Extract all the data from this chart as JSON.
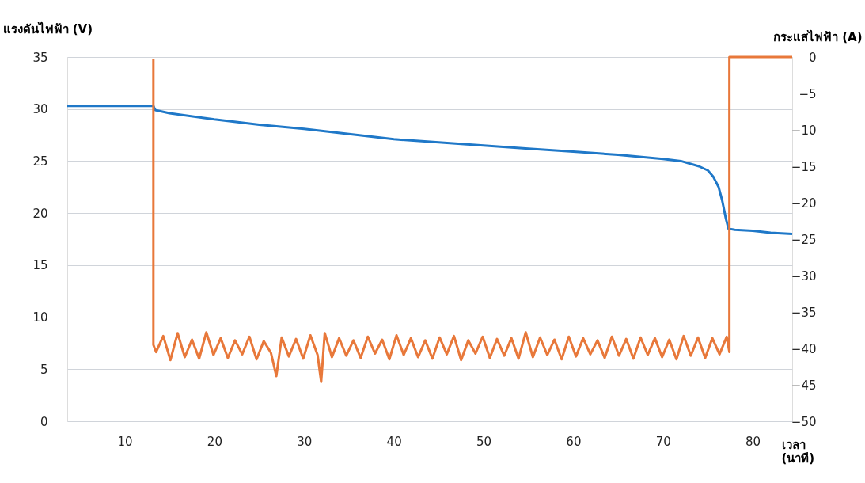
{
  "chart_data": {
    "type": "line",
    "xlabel": "เวลา (นาที)",
    "ylabel": "แรงดันไฟฟ้า (V)",
    "y2label": "กระแสไฟฟ้า (A)",
    "xlim": [
      3.6,
      84.4
    ],
    "xticks": [
      10,
      20,
      30,
      40,
      50,
      60,
      70,
      80
    ],
    "ylim": [
      0,
      35
    ],
    "yticks": [
      0,
      5,
      10,
      15,
      20,
      25,
      30,
      35
    ],
    "y2lim": [
      -50,
      0
    ],
    "y2ticks": [
      -50,
      -45,
      -40,
      -35,
      -30,
      -25,
      -20,
      -15,
      -10,
      -5,
      0
    ],
    "grid": "y",
    "series": [
      {
        "color": "#1f78c8",
        "x": [
          3.6,
          13.2,
          13.4,
          15,
          20,
          25,
          30,
          35,
          40,
          45,
          50,
          55,
          60,
          65,
          70,
          72,
          74,
          75,
          75.6,
          76.2,
          76.6,
          77.0,
          77.3,
          78,
          80,
          82,
          84.4
        ],
        "values": [
          30.3,
          30.3,
          29.9,
          29.6,
          29.0,
          28.5,
          28.1,
          27.6,
          27.1,
          26.8,
          26.5,
          26.2,
          25.9,
          25.6,
          25.2,
          25.0,
          24.5,
          24.1,
          23.5,
          22.5,
          21.2,
          19.5,
          18.5,
          18.4,
          18.3,
          18.1,
          18.0
        ]
      },
      {
        "color": "#e8783a",
        "axis": "y2",
        "x": [
          13.2,
          13.2,
          13.5,
          14.3,
          15.1,
          15.9,
          16.7,
          17.5,
          18.3,
          19.1,
          19.9,
          20.7,
          21.5,
          22.3,
          23.1,
          23.9,
          24.7,
          25.5,
          26.3,
          26.9,
          27.5,
          28.3,
          29.1,
          29.9,
          30.7,
          31.5,
          31.9,
          32.3,
          33.1,
          33.9,
          34.7,
          35.5,
          36.3,
          37.1,
          37.9,
          38.7,
          39.5,
          40.3,
          41.1,
          41.9,
          42.7,
          43.5,
          44.3,
          45.1,
          45.9,
          46.7,
          47.5,
          48.3,
          49.1,
          49.9,
          50.7,
          51.5,
          52.3,
          53.1,
          53.9,
          54.7,
          55.5,
          56.3,
          57.1,
          57.9,
          58.7,
          59.5,
          60.3,
          61.1,
          61.9,
          62.7,
          63.5,
          64.3,
          65.1,
          65.9,
          66.7,
          67.5,
          68.3,
          69.1,
          69.9,
          70.7,
          71.5,
          72.3,
          73.1,
          73.9,
          74.7,
          75.5,
          76.3,
          77.1,
          77.4,
          77.4,
          84.4
        ],
        "values": [
          -0.3,
          -39.5,
          -40.5,
          -38.3,
          -41.6,
          -37.9,
          -41.2,
          -38.8,
          -41.4,
          -37.8,
          -40.9,
          -38.6,
          -41.3,
          -38.9,
          -40.8,
          -38.4,
          -41.5,
          -39.0,
          -40.6,
          -43.8,
          -38.5,
          -41.1,
          -38.7,
          -41.4,
          -38.2,
          -40.9,
          -44.6,
          -37.9,
          -41.2,
          -38.6,
          -41.0,
          -38.9,
          -41.3,
          -38.4,
          -40.7,
          -38.8,
          -41.5,
          -38.2,
          -40.9,
          -38.6,
          -41.2,
          -38.9,
          -41.4,
          -38.5,
          -40.8,
          -38.3,
          -41.6,
          -38.9,
          -40.7,
          -38.4,
          -41.3,
          -38.7,
          -41.0,
          -38.6,
          -41.4,
          -37.8,
          -41.2,
          -38.5,
          -40.9,
          -38.8,
          -41.5,
          -38.4,
          -41.1,
          -38.6,
          -40.8,
          -38.9,
          -41.3,
          -38.4,
          -41.0,
          -38.7,
          -41.4,
          -38.5,
          -40.9,
          -38.6,
          -41.2,
          -38.8,
          -41.5,
          -38.3,
          -41.0,
          -38.5,
          -41.3,
          -38.6,
          -40.8,
          -38.4,
          -40.5,
          0,
          0
        ]
      }
    ]
  }
}
